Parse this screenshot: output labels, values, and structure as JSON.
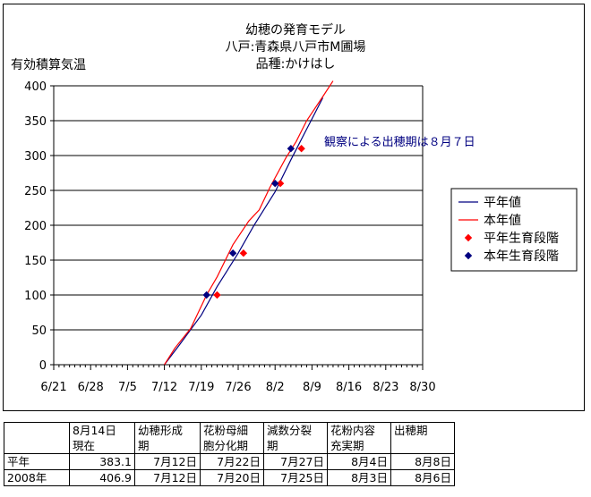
{
  "chart_data": {
    "type": "line",
    "title_lines": [
      "幼穂の発育モデル",
      "八戸:青森県八戸市M圃場",
      "品種:かけはし"
    ],
    "ylabel": "有効積算気温",
    "xlabel": "",
    "ylim": [
      0,
      400
    ],
    "yticks": [
      0,
      50,
      100,
      150,
      200,
      250,
      300,
      350,
      400
    ],
    "x_ticks": [
      "6/21",
      "6/28",
      "7/5",
      "7/12",
      "7/19",
      "7/26",
      "8/2",
      "8/9",
      "8/16",
      "8/23",
      "8/30"
    ],
    "x_axis_start": "6/21",
    "grid": true,
    "legend_position": "right",
    "annotation": "観察による出穂期は８月７日",
    "series": [
      {
        "name": "平年値",
        "kind": "line",
        "color": "#000080",
        "points": [
          [
            "7/12",
            0
          ],
          [
            "7/15",
            30
          ],
          [
            "7/19",
            71
          ],
          [
            "7/22",
            112
          ],
          [
            "7/26",
            160
          ],
          [
            "7/29",
            200
          ],
          [
            "8/2",
            248
          ],
          [
            "8/5",
            294
          ],
          [
            "8/8",
            338
          ],
          [
            "8/11",
            382
          ],
          [
            "8/11",
            383.1
          ]
        ]
      },
      {
        "name": "本年値",
        "kind": "line",
        "color": "#ff0000",
        "points": [
          [
            "7/12",
            0
          ],
          [
            "7/14",
            24
          ],
          [
            "7/17",
            52
          ],
          [
            "7/20",
            100
          ],
          [
            "7/22",
            126
          ],
          [
            "7/25",
            172
          ],
          [
            "7/28",
            206
          ],
          [
            "7/30",
            222
          ],
          [
            "8/1",
            254
          ],
          [
            "8/4",
            296
          ],
          [
            "8/6",
            320
          ],
          [
            "8/8",
            350
          ],
          [
            "8/11",
            384
          ],
          [
            "8/13",
            406.9
          ]
        ]
      },
      {
        "name": "平年生育段階",
        "kind": "markers",
        "color": "#ff0000",
        "points": [
          [
            "7/22",
            100
          ],
          [
            "7/27",
            160
          ],
          [
            "8/3",
            260
          ],
          [
            "8/7",
            310
          ]
        ]
      },
      {
        "name": "本年生育段階",
        "kind": "markers",
        "color": "#000080",
        "points": [
          [
            "7/20",
            100
          ],
          [
            "7/25",
            160
          ],
          [
            "8/2",
            260
          ],
          [
            "8/5",
            310
          ]
        ]
      }
    ]
  },
  "table": {
    "headers": [
      [],
      [
        "8月14日",
        "現在"
      ],
      [
        "幼穂形成",
        "期"
      ],
      [
        "花粉母細",
        "胞分化期"
      ],
      [
        "減数分裂",
        "期"
      ],
      [
        "花粉内容",
        "充実期"
      ],
      [
        "出穂期"
      ]
    ],
    "rows": [
      [
        "平年",
        "383.1",
        "7月12日",
        "7月22日",
        "7月27日",
        "8月4日",
        "8月8日"
      ],
      [
        "2008年",
        "406.9",
        "7月12日",
        "7月20日",
        "7月25日",
        "8月3日",
        "8月6日"
      ]
    ]
  }
}
